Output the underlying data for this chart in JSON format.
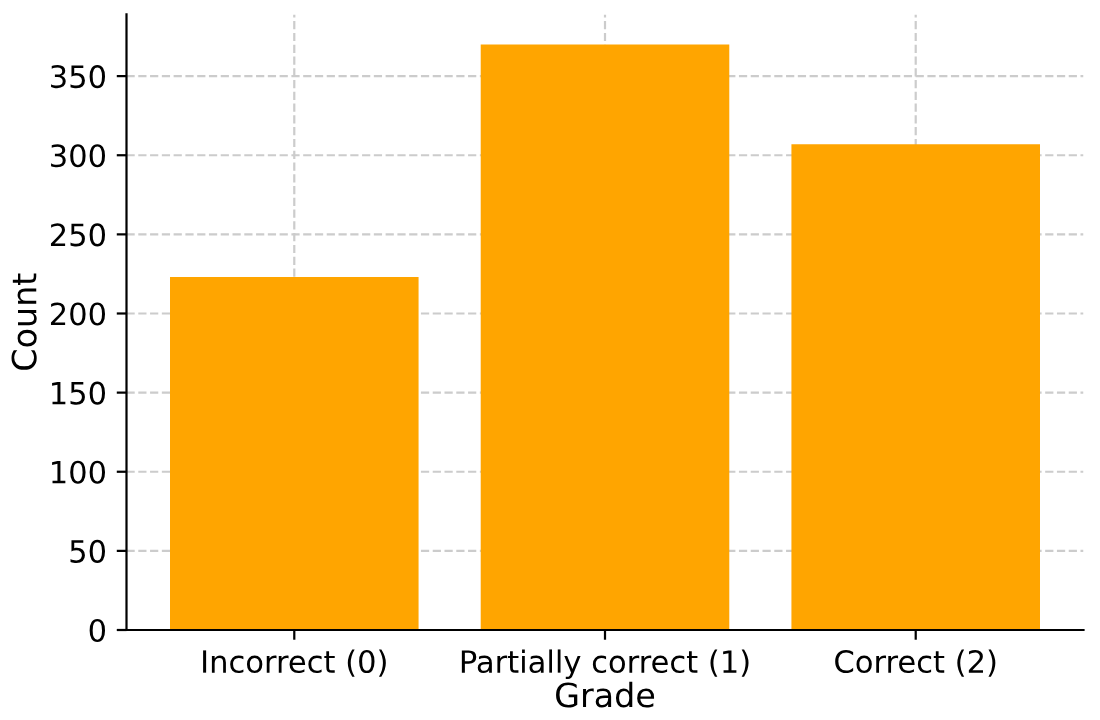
{
  "chart_data": {
    "type": "bar",
    "xlabel": "Grade",
    "ylabel": "Count",
    "categories": [
      "Incorrect (0)",
      "Partially correct (1)",
      "Correct (2)"
    ],
    "values": [
      223,
      370,
      307
    ],
    "color": "#ffa500",
    "ylim": [
      0,
      389
    ],
    "yticks": [
      0,
      50,
      100,
      150,
      200,
      250,
      300,
      350
    ],
    "grid": true
  }
}
